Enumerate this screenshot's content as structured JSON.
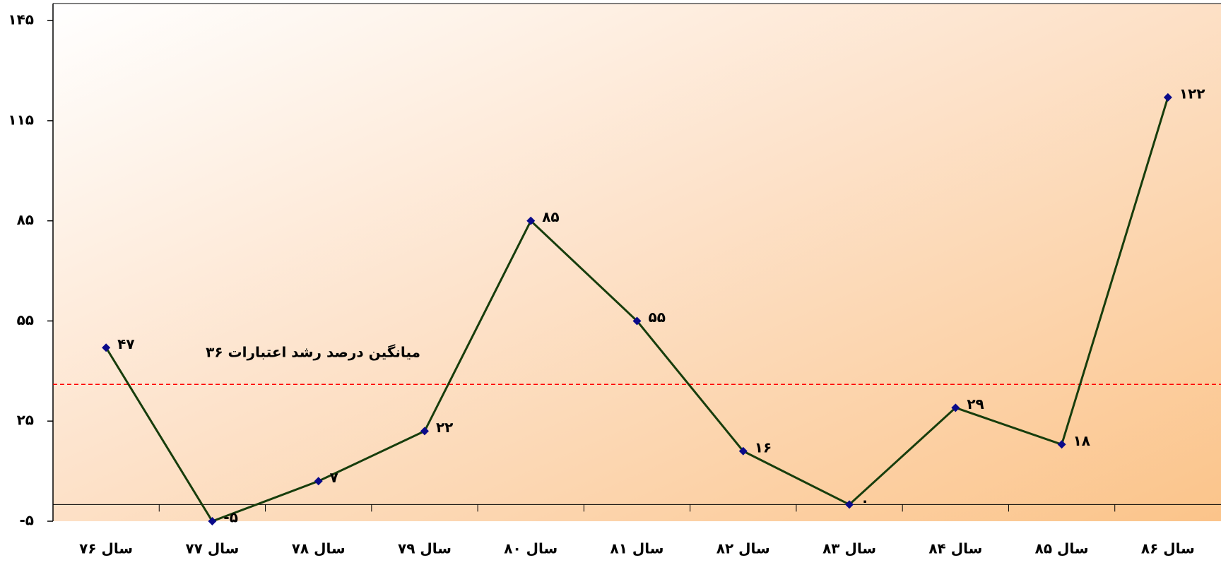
{
  "chart_data": {
    "type": "line",
    "categories": [
      "سال ۷۶",
      "سال ۷۷",
      "سال ۷۸",
      "سال ۷۹",
      "سال ۸۰",
      "سال ۸۱",
      "سال ۸۲",
      "سال ۸۳",
      "سال ۸۴",
      "سال ۸۵",
      "سال ۸۶"
    ],
    "series": [
      {
        "name": "درصد رشد اعتبارات",
        "color": "#173d0c",
        "marker_color": "#0a0a8a",
        "values": [
          47,
          -5,
          7,
          22,
          85,
          55,
          16,
          0,
          29,
          18,
          122
        ],
        "value_labels": [
          "۴۷",
          "-۵",
          "۷",
          "۲۲",
          "۸۵",
          "۵۵",
          "۱۶",
          "۰",
          "۲۹",
          "۱۸",
          "۱۲۲"
        ]
      }
    ],
    "average": {
      "value": 36,
      "label": "میانگین درصد رشد اعتبارات ۳۶",
      "color": "#ff0000"
    },
    "ylim": [
      -5,
      150
    ],
    "yticks": [
      {
        "value": -5,
        "label": "-۵"
      },
      {
        "value": 25,
        "label": "۲۵"
      },
      {
        "value": 55,
        "label": "۵۵"
      },
      {
        "value": 85,
        "label": "۸۵"
      },
      {
        "value": 115,
        "label": "۱۱۵"
      },
      {
        "value": 145,
        "label": "۱۴۵"
      }
    ],
    "grid": false
  }
}
